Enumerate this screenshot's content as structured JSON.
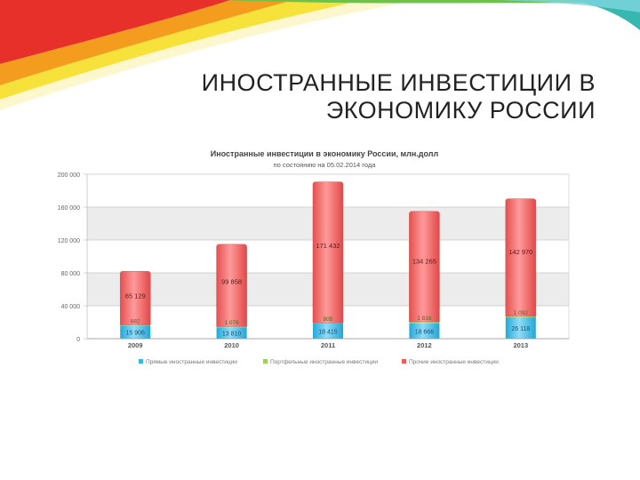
{
  "slide": {
    "title_line1": "ИНОСТРАННЫЕ ИНВЕСТИЦИИ В",
    "title_line2": "ЭКОНОМИКУ РОССИИ",
    "colors": {
      "ribbon_red": "#e8302a",
      "ribbon_orange": "#f39c1e",
      "ribbon_yellow": "#f6e23a",
      "ribbon_green": "#6fc14b",
      "ribbon_teal": "#36b7b0"
    }
  },
  "chart_data": {
    "type": "bar",
    "stacked": true,
    "title": "Иностранные инвестиции в экономику России, млн.долл",
    "subtitle": "по состоянию на 05.02.2014 года",
    "categories": [
      "2009",
      "2010",
      "2011",
      "2012",
      "2013"
    ],
    "ylim": [
      0,
      200000
    ],
    "yticks": [
      "0",
      "40 000",
      "80 000",
      "120 000",
      "160 000",
      "200 000"
    ],
    "grid": true,
    "legend_position": "bottom",
    "series": [
      {
        "name": "Прямые иностранные инвестиции",
        "color": "#4fc3e8",
        "values": [
          15906,
          13810,
          18415,
          18666,
          26118
        ],
        "labels": [
          "15 906",
          "13 810",
          "18 415",
          "18 666",
          "26 118"
        ]
      },
      {
        "name": "Портфельные иностранные инвестиции",
        "color": "#a8d96b",
        "values": [
          882,
          1076,
          805,
          1816,
          1092
        ],
        "labels": [
          "882",
          "1 076",
          "805",
          "1 816",
          "1 092"
        ]
      },
      {
        "name": "Прочие иностранные инвестиции",
        "color": "#f26d6d",
        "values": [
          65129,
          99858,
          171432,
          134265,
          142970
        ],
        "labels": [
          "65 129",
          "99 858",
          "171 432",
          "134 265",
          "142 970"
        ]
      }
    ]
  }
}
